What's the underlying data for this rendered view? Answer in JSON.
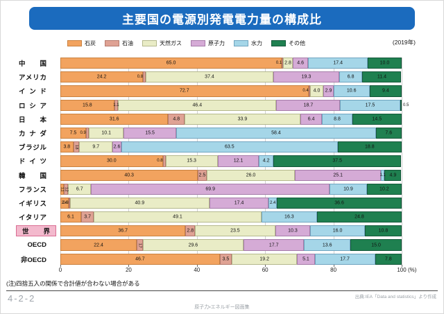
{
  "title": "主要国の電源別発電電力量の構成比",
  "year_label": "(2019年)",
  "note": "(注)四捨五入の関係で合計値が合わない場合がある",
  "footer": {
    "fig_number": "4-2-2",
    "source": "出典:IEA「Data and statistics」より作成",
    "publication": "原子力・エネルギー図面集"
  },
  "chart_data": {
    "type": "bar",
    "orientation": "horizontal-stacked",
    "unit": "%",
    "xlim": [
      0,
      100
    ],
    "x_ticks": [
      0,
      20,
      40,
      60,
      80,
      100
    ],
    "x_unit_label": "(%)",
    "grid": "vertical",
    "legend_position": "top",
    "series_keys": [
      "coal",
      "oil",
      "gas",
      "nuclear",
      "hydro",
      "other"
    ],
    "legend": [
      {
        "key": "coal",
        "label": "石炭",
        "color": "#f2a35f",
        "border": "#c9813f"
      },
      {
        "key": "oil",
        "label": "石油",
        "color": "#dfa294",
        "border": "#b57b6e"
      },
      {
        "key": "gas",
        "label": "天然ガス",
        "color": "#e9ecc6",
        "border": "#b4b88c"
      },
      {
        "key": "nuclear",
        "label": "原子力",
        "color": "#d5abd6",
        "border": "#a57ba8"
      },
      {
        "key": "hydro",
        "label": "水力",
        "color": "#a5d6e8",
        "border": "#6fa4bf"
      },
      {
        "key": "other",
        "label": "その他",
        "color": "#1f8050",
        "border": "#14573a"
      }
    ],
    "rows": [
      {
        "label": "中国",
        "values": [
          65.0,
          0.1,
          2.8,
          4.6,
          17.4,
          10.0
        ]
      },
      {
        "label": "アメリカ",
        "values": [
          24.2,
          0.8,
          37.4,
          19.3,
          6.8,
          11.4
        ]
      },
      {
        "label": "インド",
        "values": [
          72.7,
          0.4,
          4.0,
          2.9,
          10.6,
          9.4
        ]
      },
      {
        "label": "ロシア",
        "values": [
          15.8,
          1.1,
          46.4,
          18.7,
          17.5,
          0.5
        ],
        "out": [
          5
        ]
      },
      {
        "label": "日本",
        "values": [
          31.6,
          4.8,
          33.9,
          6.4,
          8.8,
          14.5
        ]
      },
      {
        "label": "カナダ",
        "values": [
          7.5,
          0.9,
          10.1,
          15.5,
          58.4,
          7.6
        ]
      },
      {
        "label": "ブラジル",
        "values": [
          3.8,
          1.8,
          9.7,
          2.6,
          63.5,
          18.8
        ],
        "vertical": [
          1
        ]
      },
      {
        "label": "ドイツ",
        "values": [
          30.0,
          0.8,
          15.3,
          12.1,
          4.2,
          37.5
        ]
      },
      {
        "label": "韓国",
        "values": [
          40.3,
          2.5,
          26.0,
          25.1,
          1.1,
          4.9
        ]
      },
      {
        "label": "フランス",
        "values": [
          1.1,
          1.2,
          6.7,
          69.9,
          10.9,
          10.2
        ],
        "vertical": [
          0,
          1
        ]
      },
      {
        "label": "イギリス",
        "values": [
          2.4,
          0.3,
          40.9,
          17.4,
          2.4,
          36.6
        ]
      },
      {
        "label": "イタリア",
        "values": [
          6.1,
          3.7,
          49.1,
          null,
          16.3,
          24.8
        ]
      },
      {
        "label": "世界",
        "values": [
          36.7,
          2.8,
          23.5,
          10.3,
          16.0,
          10.8
        ],
        "highlight": true
      },
      {
        "label": "OECD",
        "values": [
          22.4,
          1.7,
          29.6,
          17.7,
          13.6,
          15.0
        ],
        "vertical": [
          1
        ]
      },
      {
        "label": "非OECD",
        "values": [
          46.7,
          3.5,
          19.2,
          5.1,
          17.7,
          7.8
        ]
      }
    ]
  }
}
